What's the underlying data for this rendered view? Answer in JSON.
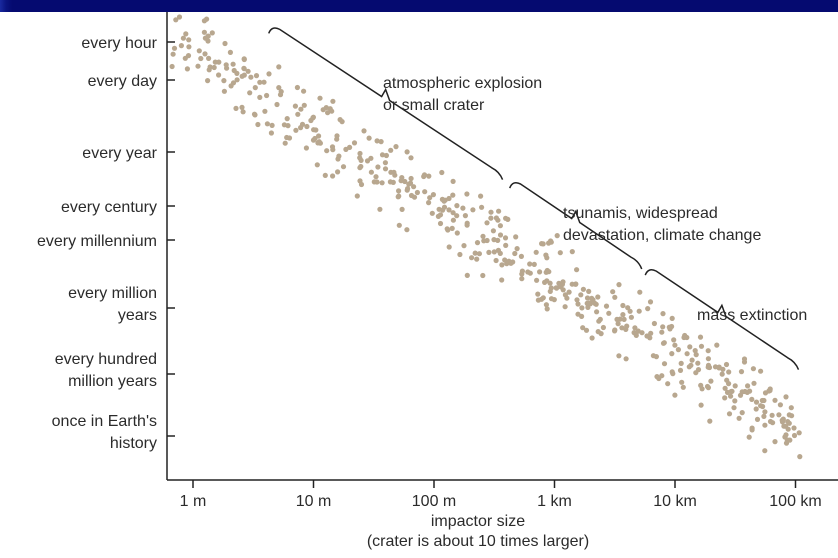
{
  "chart_data": {
    "type": "scatter",
    "title": "",
    "xlabel": "impactor size",
    "xlabel_sub": "(crater is about 10 times larger)",
    "ylabel": "",
    "x_scale": "log",
    "x_ticks": [
      {
        "value": 1,
        "label": "1 m"
      },
      {
        "value": 10,
        "label": "10 m"
      },
      {
        "value": 100,
        "label": "100 m"
      },
      {
        "value": 1000,
        "label": "1 km"
      },
      {
        "value": 10000,
        "label": "10 km"
      },
      {
        "value": 100000,
        "label": "100 km"
      }
    ],
    "y_ticks": [
      {
        "label": [
          "every hour"
        ]
      },
      {
        "label": [
          "every day"
        ]
      },
      {
        "label": [
          "every year"
        ]
      },
      {
        "label": [
          "every century"
        ]
      },
      {
        "label": [
          "every millennium"
        ]
      },
      {
        "label": [
          "every million",
          "years"
        ]
      },
      {
        "label": [
          "every hundred",
          "million years"
        ]
      },
      {
        "label": [
          "once in Earth's",
          "history"
        ]
      }
    ],
    "annotations": [
      {
        "lines": [
          "atmospheric explosion",
          "or small crater"
        ],
        "x_from": 4.5,
        "x_to": 350
      },
      {
        "lines": [
          "tsunamis, widespread",
          "devastation, climate change"
        ],
        "x_from": 450,
        "x_to": 5000
      },
      {
        "lines": [
          "mass extinction"
        ],
        "x_from": 6000,
        "x_to": 100000
      }
    ],
    "point_color": "#b8a78f",
    "grid": false,
    "legend": "none"
  }
}
